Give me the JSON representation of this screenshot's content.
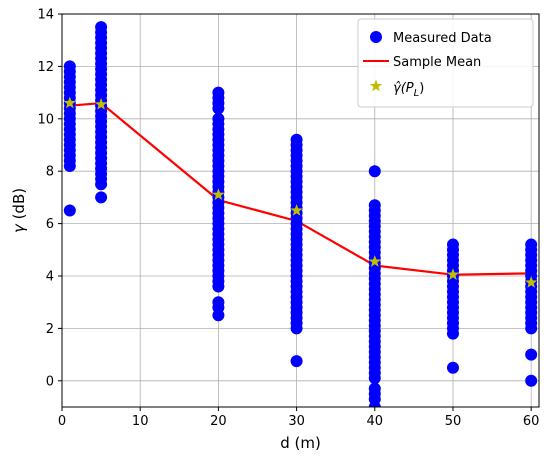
{
  "chart_data": {
    "type": "scatter",
    "xlabel": "d (m)",
    "ylabel_symbol": "γ",
    "ylabel_unit": " (dB)",
    "xlim": [
      0,
      61
    ],
    "ylim": [
      -1,
      14
    ],
    "xticks": [
      0,
      10,
      20,
      30,
      40,
      50,
      60
    ],
    "yticks": [
      0,
      2,
      4,
      6,
      8,
      10,
      12,
      14
    ],
    "grid": true,
    "legend_position": "top-right",
    "colors": {
      "measured": "#0000ff",
      "mean": "#ff0000",
      "estimate": "#bfbf00",
      "grid": "#b0b0b0"
    },
    "legend": {
      "measured": "Measured Data",
      "mean": "Sample Mean",
      "estimate_base": "γ̂(P",
      "estimate_sub": "L",
      "estimate_close": ")"
    },
    "series": [
      {
        "name": "Measured Data",
        "kind": "scatter",
        "points": [
          [
            1,
            12.0
          ],
          [
            1,
            11.8
          ],
          [
            1,
            11.6
          ],
          [
            1,
            11.4
          ],
          [
            1,
            11.2
          ],
          [
            1,
            11.0
          ],
          [
            1,
            10.8
          ],
          [
            1,
            10.6
          ],
          [
            1,
            10.4
          ],
          [
            1,
            10.2
          ],
          [
            1,
            10.0
          ],
          [
            1,
            9.8
          ],
          [
            1,
            9.6
          ],
          [
            1,
            9.4
          ],
          [
            1,
            9.2
          ],
          [
            1,
            9.0
          ],
          [
            1,
            8.8
          ],
          [
            1,
            8.6
          ],
          [
            1,
            8.4
          ],
          [
            1,
            8.2
          ],
          [
            1,
            6.5
          ],
          [
            5,
            13.5
          ],
          [
            5,
            13.3
          ],
          [
            5,
            13.1
          ],
          [
            5,
            12.9
          ],
          [
            5,
            12.7
          ],
          [
            5,
            12.5
          ],
          [
            5,
            12.3
          ],
          [
            5,
            12.1
          ],
          [
            5,
            11.9
          ],
          [
            5,
            11.7
          ],
          [
            5,
            11.5
          ],
          [
            5,
            11.3
          ],
          [
            5,
            11.1
          ],
          [
            5,
            10.9
          ],
          [
            5,
            10.7
          ],
          [
            5,
            10.5
          ],
          [
            5,
            10.3
          ],
          [
            5,
            10.1
          ],
          [
            5,
            9.9
          ],
          [
            5,
            9.7
          ],
          [
            5,
            9.5
          ],
          [
            5,
            9.3
          ],
          [
            5,
            9.1
          ],
          [
            5,
            8.9
          ],
          [
            5,
            8.7
          ],
          [
            5,
            8.5
          ],
          [
            5,
            8.3
          ],
          [
            5,
            8.1
          ],
          [
            5,
            7.9
          ],
          [
            5,
            7.7
          ],
          [
            5,
            7.5
          ],
          [
            5,
            7.0
          ],
          [
            20,
            11.0
          ],
          [
            20,
            10.8
          ],
          [
            20,
            10.6
          ],
          [
            20,
            10.4
          ],
          [
            20,
            10.0
          ],
          [
            20,
            9.8
          ],
          [
            20,
            9.6
          ],
          [
            20,
            9.4
          ],
          [
            20,
            9.2
          ],
          [
            20,
            9.0
          ],
          [
            20,
            8.8
          ],
          [
            20,
            8.6
          ],
          [
            20,
            8.4
          ],
          [
            20,
            8.2
          ],
          [
            20,
            8.0
          ],
          [
            20,
            7.8
          ],
          [
            20,
            7.6
          ],
          [
            20,
            7.4
          ],
          [
            20,
            7.2
          ],
          [
            20,
            7.0
          ],
          [
            20,
            6.8
          ],
          [
            20,
            6.6
          ],
          [
            20,
            6.4
          ],
          [
            20,
            6.2
          ],
          [
            20,
            6.0
          ],
          [
            20,
            5.8
          ],
          [
            20,
            5.6
          ],
          [
            20,
            5.4
          ],
          [
            20,
            5.2
          ],
          [
            20,
            5.0
          ],
          [
            20,
            4.8
          ],
          [
            20,
            4.6
          ],
          [
            20,
            4.4
          ],
          [
            20,
            4.2
          ],
          [
            20,
            4.0
          ],
          [
            20,
            3.8
          ],
          [
            20,
            3.6
          ],
          [
            20,
            3.0
          ],
          [
            20,
            2.8
          ],
          [
            20,
            2.5
          ],
          [
            30,
            9.2
          ],
          [
            30,
            9.0
          ],
          [
            30,
            8.8
          ],
          [
            30,
            8.6
          ],
          [
            30,
            8.4
          ],
          [
            30,
            8.2
          ],
          [
            30,
            8.0
          ],
          [
            30,
            7.8
          ],
          [
            30,
            7.6
          ],
          [
            30,
            7.4
          ],
          [
            30,
            7.2
          ],
          [
            30,
            7.0
          ],
          [
            30,
            6.8
          ],
          [
            30,
            6.6
          ],
          [
            30,
            6.4
          ],
          [
            30,
            6.2
          ],
          [
            30,
            6.0
          ],
          [
            30,
            5.8
          ],
          [
            30,
            5.6
          ],
          [
            30,
            5.4
          ],
          [
            30,
            5.2
          ],
          [
            30,
            5.0
          ],
          [
            30,
            4.8
          ],
          [
            30,
            4.6
          ],
          [
            30,
            4.4
          ],
          [
            30,
            4.2
          ],
          [
            30,
            4.0
          ],
          [
            30,
            3.8
          ],
          [
            30,
            3.6
          ],
          [
            30,
            3.4
          ],
          [
            30,
            3.2
          ],
          [
            30,
            3.0
          ],
          [
            30,
            2.8
          ],
          [
            30,
            2.6
          ],
          [
            30,
            2.4
          ],
          [
            30,
            2.2
          ],
          [
            30,
            2.0
          ],
          [
            30,
            0.75
          ],
          [
            40,
            8.0
          ],
          [
            40,
            6.7
          ],
          [
            40,
            6.5
          ],
          [
            40,
            6.3
          ],
          [
            40,
            6.1
          ],
          [
            40,
            5.9
          ],
          [
            40,
            5.7
          ],
          [
            40,
            5.5
          ],
          [
            40,
            5.3
          ],
          [
            40,
            5.1
          ],
          [
            40,
            4.9
          ],
          [
            40,
            4.7
          ],
          [
            40,
            4.5
          ],
          [
            40,
            4.3
          ],
          [
            40,
            4.1
          ],
          [
            40,
            3.9
          ],
          [
            40,
            3.7
          ],
          [
            40,
            3.5
          ],
          [
            40,
            3.3
          ],
          [
            40,
            3.1
          ],
          [
            40,
            2.9
          ],
          [
            40,
            2.7
          ],
          [
            40,
            2.5
          ],
          [
            40,
            2.3
          ],
          [
            40,
            2.1
          ],
          [
            40,
            1.9
          ],
          [
            40,
            1.7
          ],
          [
            40,
            1.5
          ],
          [
            40,
            1.3
          ],
          [
            40,
            1.1
          ],
          [
            40,
            0.9
          ],
          [
            40,
            0.7
          ],
          [
            40,
            0.5
          ],
          [
            40,
            0.3
          ],
          [
            40,
            0.1
          ],
          [
            40,
            -0.3
          ],
          [
            40,
            -0.5
          ],
          [
            40,
            -0.7
          ],
          [
            40,
            -1.0
          ],
          [
            50,
            5.2
          ],
          [
            50,
            5.0
          ],
          [
            50,
            4.8
          ],
          [
            50,
            4.6
          ],
          [
            50,
            4.4
          ],
          [
            50,
            4.2
          ],
          [
            50,
            4.0
          ],
          [
            50,
            3.8
          ],
          [
            50,
            3.6
          ],
          [
            50,
            3.4
          ],
          [
            50,
            3.2
          ],
          [
            50,
            3.0
          ],
          [
            50,
            2.8
          ],
          [
            50,
            2.6
          ],
          [
            50,
            2.4
          ],
          [
            50,
            2.2
          ],
          [
            50,
            2.0
          ],
          [
            50,
            1.8
          ],
          [
            50,
            0.5
          ],
          [
            60,
            5.2
          ],
          [
            60,
            5.0
          ],
          [
            60,
            4.8
          ],
          [
            60,
            4.6
          ],
          [
            60,
            4.4
          ],
          [
            60,
            4.2
          ],
          [
            60,
            4.0
          ],
          [
            60,
            3.8
          ],
          [
            60,
            3.6
          ],
          [
            60,
            3.4
          ],
          [
            60,
            3.2
          ],
          [
            60,
            3.0
          ],
          [
            60,
            2.8
          ],
          [
            60,
            2.6
          ],
          [
            60,
            2.4
          ],
          [
            60,
            2.2
          ],
          [
            60,
            2.0
          ],
          [
            60,
            1.0
          ],
          [
            60,
            0.0
          ]
        ]
      },
      {
        "name": "Sample Mean",
        "kind": "line",
        "x": [
          1,
          5,
          20,
          30,
          40,
          50,
          60
        ],
        "y": [
          10.5,
          10.6,
          6.9,
          6.1,
          4.4,
          4.05,
          4.1
        ]
      },
      {
        "name": "γ̂(PL)",
        "kind": "star",
        "x": [
          1,
          5,
          20,
          30,
          40,
          50,
          60
        ],
        "y": [
          10.6,
          10.55,
          7.1,
          6.5,
          4.55,
          4.05,
          3.75
        ]
      }
    ]
  }
}
